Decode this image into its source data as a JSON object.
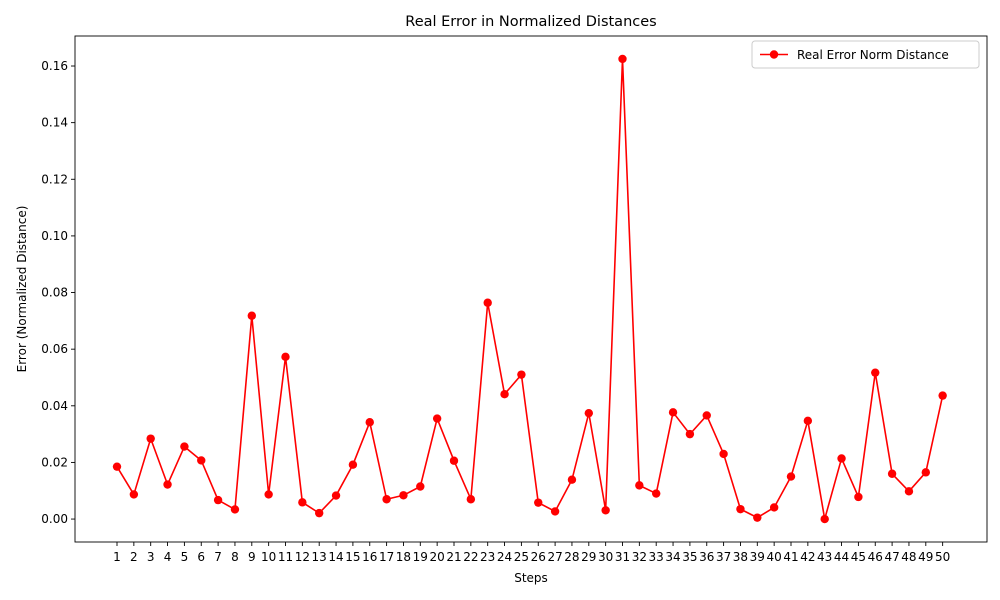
{
  "chart_data": {
    "type": "line",
    "title": "Real Error in Normalized Distances",
    "xlabel": "Steps",
    "ylabel": "Error (Normalized Distance)",
    "categories": [
      "1",
      "2",
      "3",
      "4",
      "5",
      "6",
      "7",
      "8",
      "9",
      "10",
      "11",
      "12",
      "13",
      "14",
      "15",
      "16",
      "17",
      "18",
      "19",
      "20",
      "21",
      "22",
      "23",
      "24",
      "25",
      "26",
      "27",
      "28",
      "29",
      "30",
      "31",
      "32",
      "33",
      "34",
      "35",
      "36",
      "37",
      "38",
      "39",
      "40",
      "41",
      "42",
      "43",
      "44",
      "45",
      "46",
      "47",
      "48",
      "49",
      "50"
    ],
    "series": [
      {
        "name": "Real Error Norm Distance",
        "color": "#ff0000",
        "marker": "circle",
        "values": [
          0.0185,
          0.0087,
          0.0284,
          0.0122,
          0.0256,
          0.0207,
          0.0067,
          0.0034,
          0.0718,
          0.0087,
          0.0573,
          0.0059,
          0.0021,
          0.0083,
          0.0192,
          0.0342,
          0.007,
          0.0084,
          0.0115,
          0.0355,
          0.0206,
          0.007,
          0.0764,
          0.0441,
          0.051,
          0.0058,
          0.0027,
          0.0139,
          0.0374,
          0.0031,
          0.1625,
          0.0119,
          0.009,
          0.0377,
          0.03,
          0.0366,
          0.023,
          0.0035,
          0.0005,
          0.0041,
          0.015,
          0.0347,
          0.0,
          0.0214,
          0.0078,
          0.0517,
          0.016,
          0.0098,
          0.0165,
          0.0436
        ]
      }
    ],
    "yticks": [
      "0.00",
      "0.02",
      "0.04",
      "0.06",
      "0.08",
      "0.10",
      "0.12",
      "0.14",
      "0.16"
    ],
    "ytick_values": [
      0,
      0.02,
      0.04,
      0.06,
      0.08,
      0.1,
      0.12,
      0.14,
      0.16
    ],
    "ylim": [
      -0.0081,
      0.1706
    ],
    "grid": false,
    "legend_position": "top-right"
  }
}
